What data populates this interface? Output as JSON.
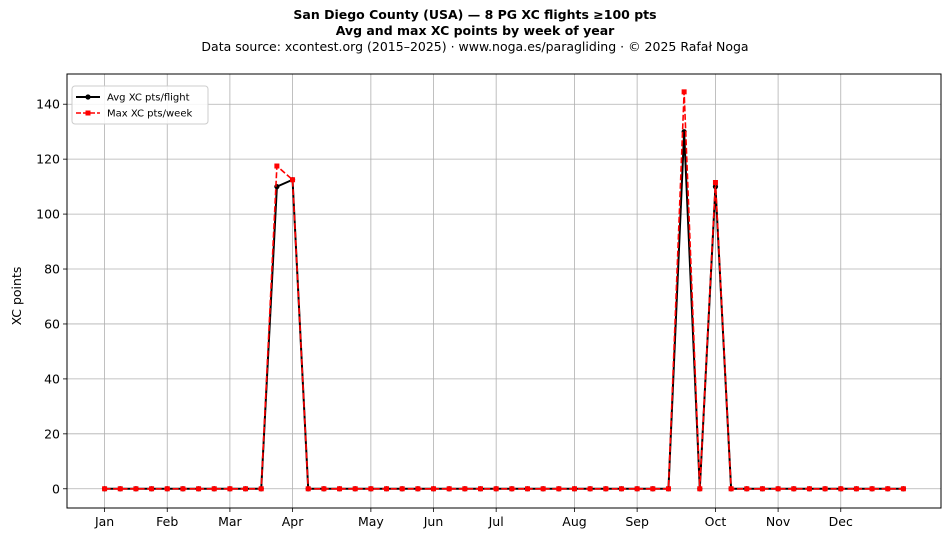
{
  "title": {
    "line1": "San Diego County (USA)  —  8 PG XC flights ≥100 pts",
    "line2": "Avg and max XC points by week of year",
    "line3": "Data source: xcontest.org (2015–2025)  ·  www.noga.es/paragliding  ·  © 2025 Rafał Noga"
  },
  "chart_data": {
    "type": "line",
    "title": "San Diego County (USA)  —  8 PG XC flights ≥100 pts",
    "subtitle": "Avg and max XC points by week of year",
    "xlabel": "",
    "ylabel": "XC points",
    "x": [
      1,
      2,
      3,
      4,
      5,
      6,
      7,
      8,
      9,
      10,
      11,
      12,
      13,
      14,
      15,
      16,
      17,
      18,
      19,
      20,
      21,
      22,
      23,
      24,
      25,
      26,
      27,
      28,
      29,
      30,
      31,
      32,
      33,
      34,
      35,
      36,
      37,
      38,
      39,
      40,
      41,
      42,
      43,
      44,
      45,
      46,
      47,
      48,
      49,
      50,
      51,
      52
    ],
    "x_ticks": [
      {
        "x": 1,
        "label": "Jan"
      },
      {
        "x": 5,
        "label": "Feb"
      },
      {
        "x": 9,
        "label": "Mar"
      },
      {
        "x": 13,
        "label": "Apr"
      },
      {
        "x": 18,
        "label": "May"
      },
      {
        "x": 22,
        "label": "Jun"
      },
      {
        "x": 26,
        "label": "Jul"
      },
      {
        "x": 31,
        "label": "Aug"
      },
      {
        "x": 35,
        "label": "Sep"
      },
      {
        "x": 40,
        "label": "Oct"
      },
      {
        "x": 44,
        "label": "Nov"
      },
      {
        "x": 48,
        "label": "Dec"
      }
    ],
    "y_ticks": [
      0,
      20,
      40,
      60,
      80,
      100,
      120,
      140
    ],
    "xlim": [
      -1.4,
      54.4
    ],
    "ylim": [
      -7,
      151
    ],
    "grid": true,
    "legend": "top-left",
    "series": [
      {
        "name": "Avg XC pts/flight",
        "color": "#000000",
        "style": "solid",
        "marker": "circle",
        "values": [
          0,
          0,
          0,
          0,
          0,
          0,
          0,
          0,
          0,
          0,
          0,
          110,
          112.5,
          0,
          0,
          0,
          0,
          0,
          0,
          0,
          0,
          0,
          0,
          0,
          0,
          0,
          0,
          0,
          0,
          0,
          0,
          0,
          0,
          0,
          0,
          0,
          0,
          130,
          0,
          110,
          0,
          0,
          0,
          0,
          0,
          0,
          0,
          0,
          0,
          0,
          0,
          0
        ]
      },
      {
        "name": "Max XC pts/week",
        "color": "#ff0000",
        "style": "dashed",
        "marker": "square",
        "values": [
          0,
          0,
          0,
          0,
          0,
          0,
          0,
          0,
          0,
          0,
          0,
          117.5,
          112.5,
          0,
          0,
          0,
          0,
          0,
          0,
          0,
          0,
          0,
          0,
          0,
          0,
          0,
          0,
          0,
          0,
          0,
          0,
          0,
          0,
          0,
          0,
          0,
          0,
          144.5,
          0,
          111.5,
          0,
          0,
          0,
          0,
          0,
          0,
          0,
          0,
          0,
          0,
          0,
          0
        ]
      }
    ]
  }
}
